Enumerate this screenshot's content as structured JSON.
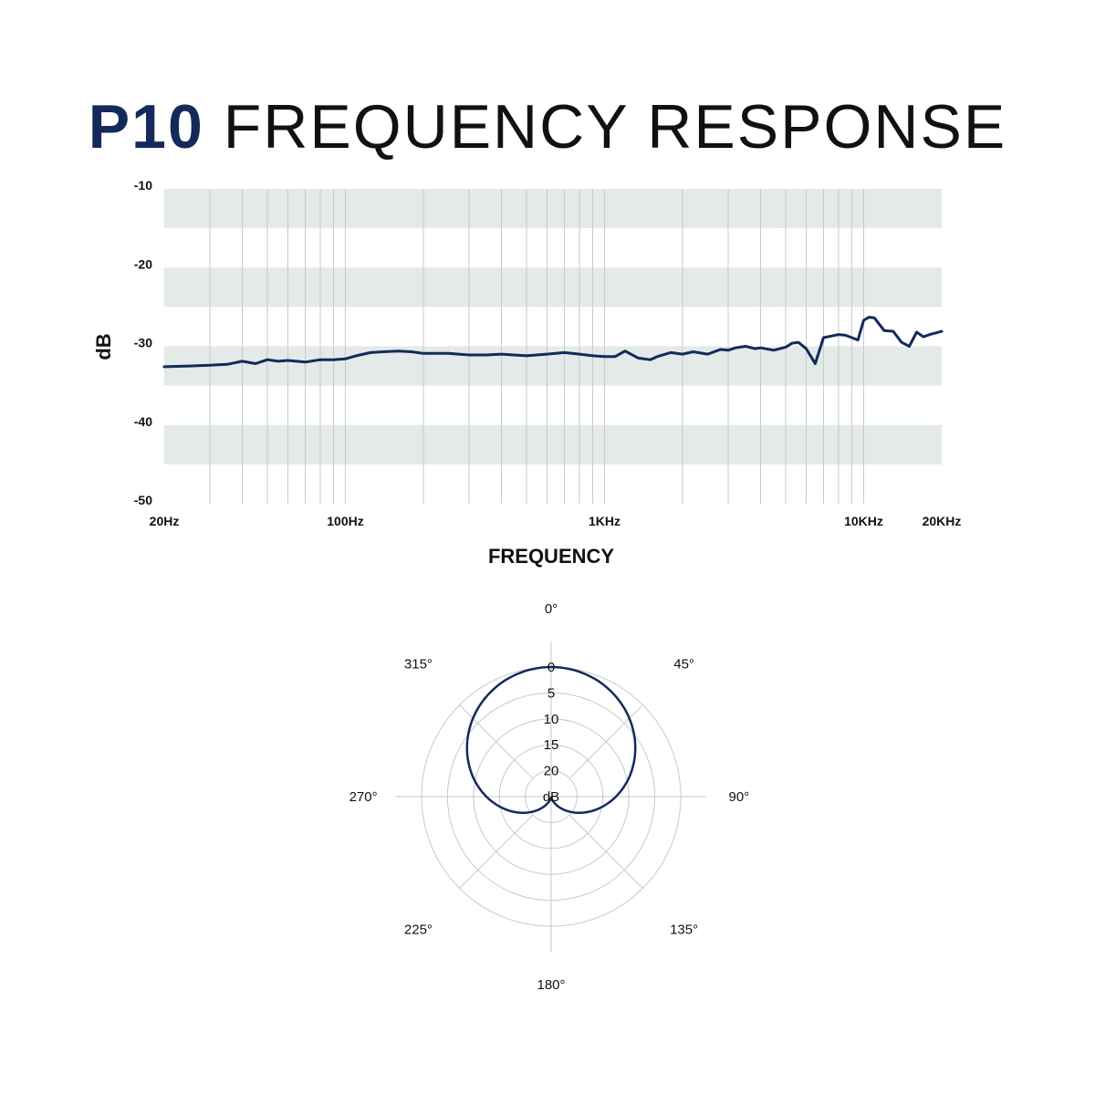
{
  "title": {
    "brand": "P10",
    "rest": "FREQUENCY RESPONSE"
  },
  "colors": {
    "brand": "#132a5a",
    "band": "#e3eae8",
    "grid": "#c9c9c9",
    "curve": "#132a5a"
  },
  "chart_data": [
    {
      "type": "line",
      "xlabel": "FREQUENCY",
      "ylabel": "dB",
      "x_scale": "log",
      "xlim": [
        20,
        20000
      ],
      "ylim": [
        -50,
        -10
      ],
      "y_ticks": [
        "-10",
        "-20",
        "-30",
        "-40",
        "-50"
      ],
      "x_tick_labels": [
        {
          "label": "20Hz",
          "value": 20
        },
        {
          "label": "100Hz",
          "value": 100
        },
        {
          "label": "1KHz",
          "value": 1000
        },
        {
          "label": "10KHz",
          "value": 10000
        },
        {
          "label": "20KHz",
          "value": 20000
        }
      ],
      "grid": true,
      "series": [
        {
          "x": [
            20,
            25,
            30,
            35,
            40,
            45,
            50,
            55,
            60,
            70,
            80,
            90,
            100,
            110,
            125,
            140,
            160,
            180,
            200,
            250,
            300,
            350,
            400,
            500,
            600,
            700,
            800,
            900,
            1000,
            1100,
            1200,
            1350,
            1500,
            1600,
            1800,
            2000,
            2200,
            2500,
            2800,
            3000,
            3200,
            3500,
            3800,
            4000,
            4500,
            5000,
            5300,
            5600,
            6000,
            6500,
            7000,
            7500,
            8000,
            8500,
            9000,
            9500,
            10000,
            10500,
            11000,
            12000,
            13000,
            14000,
            15000,
            16000,
            17000,
            18000,
            19000,
            20000
          ],
          "y": [
            -32.6,
            -32.5,
            -32.4,
            -32.3,
            -31.9,
            -32.2,
            -31.7,
            -31.9,
            -31.8,
            -32.0,
            -31.7,
            -31.7,
            -31.6,
            -31.2,
            -30.8,
            -30.7,
            -30.6,
            -30.7,
            -30.9,
            -30.9,
            -31.1,
            -31.1,
            -31.0,
            -31.2,
            -31.0,
            -30.8,
            -31.0,
            -31.2,
            -31.3,
            -31.3,
            -30.6,
            -31.5,
            -31.7,
            -31.3,
            -30.8,
            -31.0,
            -30.7,
            -31.0,
            -30.4,
            -30.5,
            -30.2,
            -30.0,
            -30.3,
            -30.2,
            -30.5,
            -30.1,
            -29.6,
            -29.5,
            -30.3,
            -32.2,
            -28.9,
            -28.7,
            -28.5,
            -28.6,
            -28.9,
            -29.2,
            -26.7,
            -26.3,
            -26.4,
            -28.0,
            -28.1,
            -29.5,
            -30.0,
            -28.2,
            -28.8,
            -28.5,
            -28.3,
            -28.1
          ]
        }
      ]
    },
    {
      "type": "polar",
      "pattern": "cardioid",
      "angle_labels": [
        "0°",
        "45°",
        "90°",
        "135°",
        "180°",
        "225°",
        "270°",
        "315°"
      ],
      "r_labels": [
        "0",
        "5",
        "10",
        "15",
        "20",
        "dB"
      ]
    }
  ]
}
